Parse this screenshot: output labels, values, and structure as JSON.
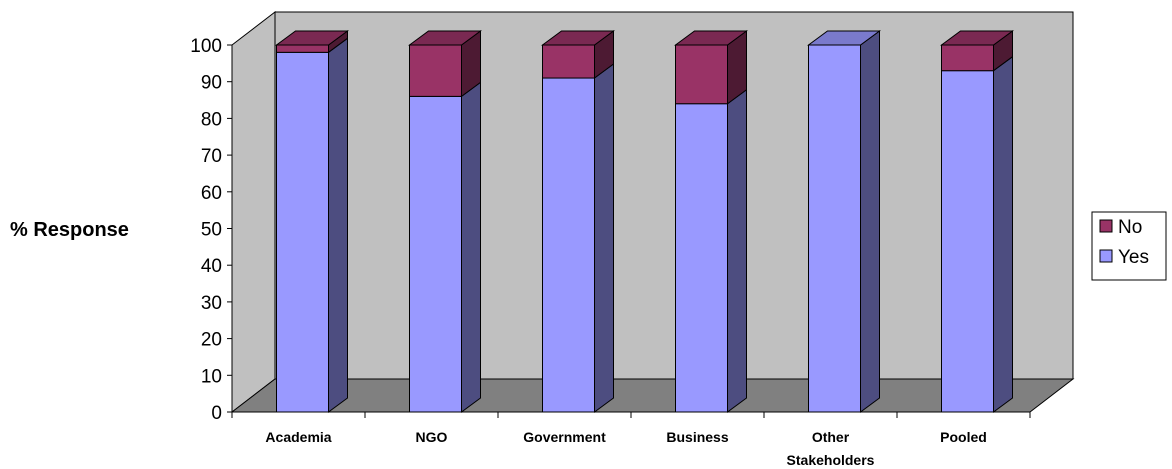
{
  "chart_data": {
    "type": "bar",
    "stacked": true,
    "style": "3d-column",
    "categories": [
      "Academia",
      "NGO",
      "Government",
      "Business",
      "Other Stakeholders",
      "Pooled"
    ],
    "series": [
      {
        "name": "Yes",
        "values": [
          98,
          86,
          91,
          84,
          100,
          93
        ],
        "color": "#9999ff"
      },
      {
        "name": "No",
        "values": [
          2,
          14,
          9,
          16,
          0,
          7
        ],
        "color": "#993366"
      }
    ],
    "title": "",
    "xlabel": "",
    "ylabel": "% Response",
    "ylim": [
      0,
      100
    ],
    "yticks": [
      0,
      10,
      20,
      30,
      40,
      50,
      60,
      70,
      80,
      90,
      100
    ],
    "grid": false,
    "legend": {
      "position": "right",
      "items": [
        "No",
        "Yes"
      ]
    },
    "colors": {
      "wall": "#c0c0c0",
      "floor": "#808080",
      "yes_side": "#4d4d80",
      "no_side": "#4d1a33",
      "no_top": "#7a2952",
      "yes_top": "#7a7acc"
    }
  }
}
